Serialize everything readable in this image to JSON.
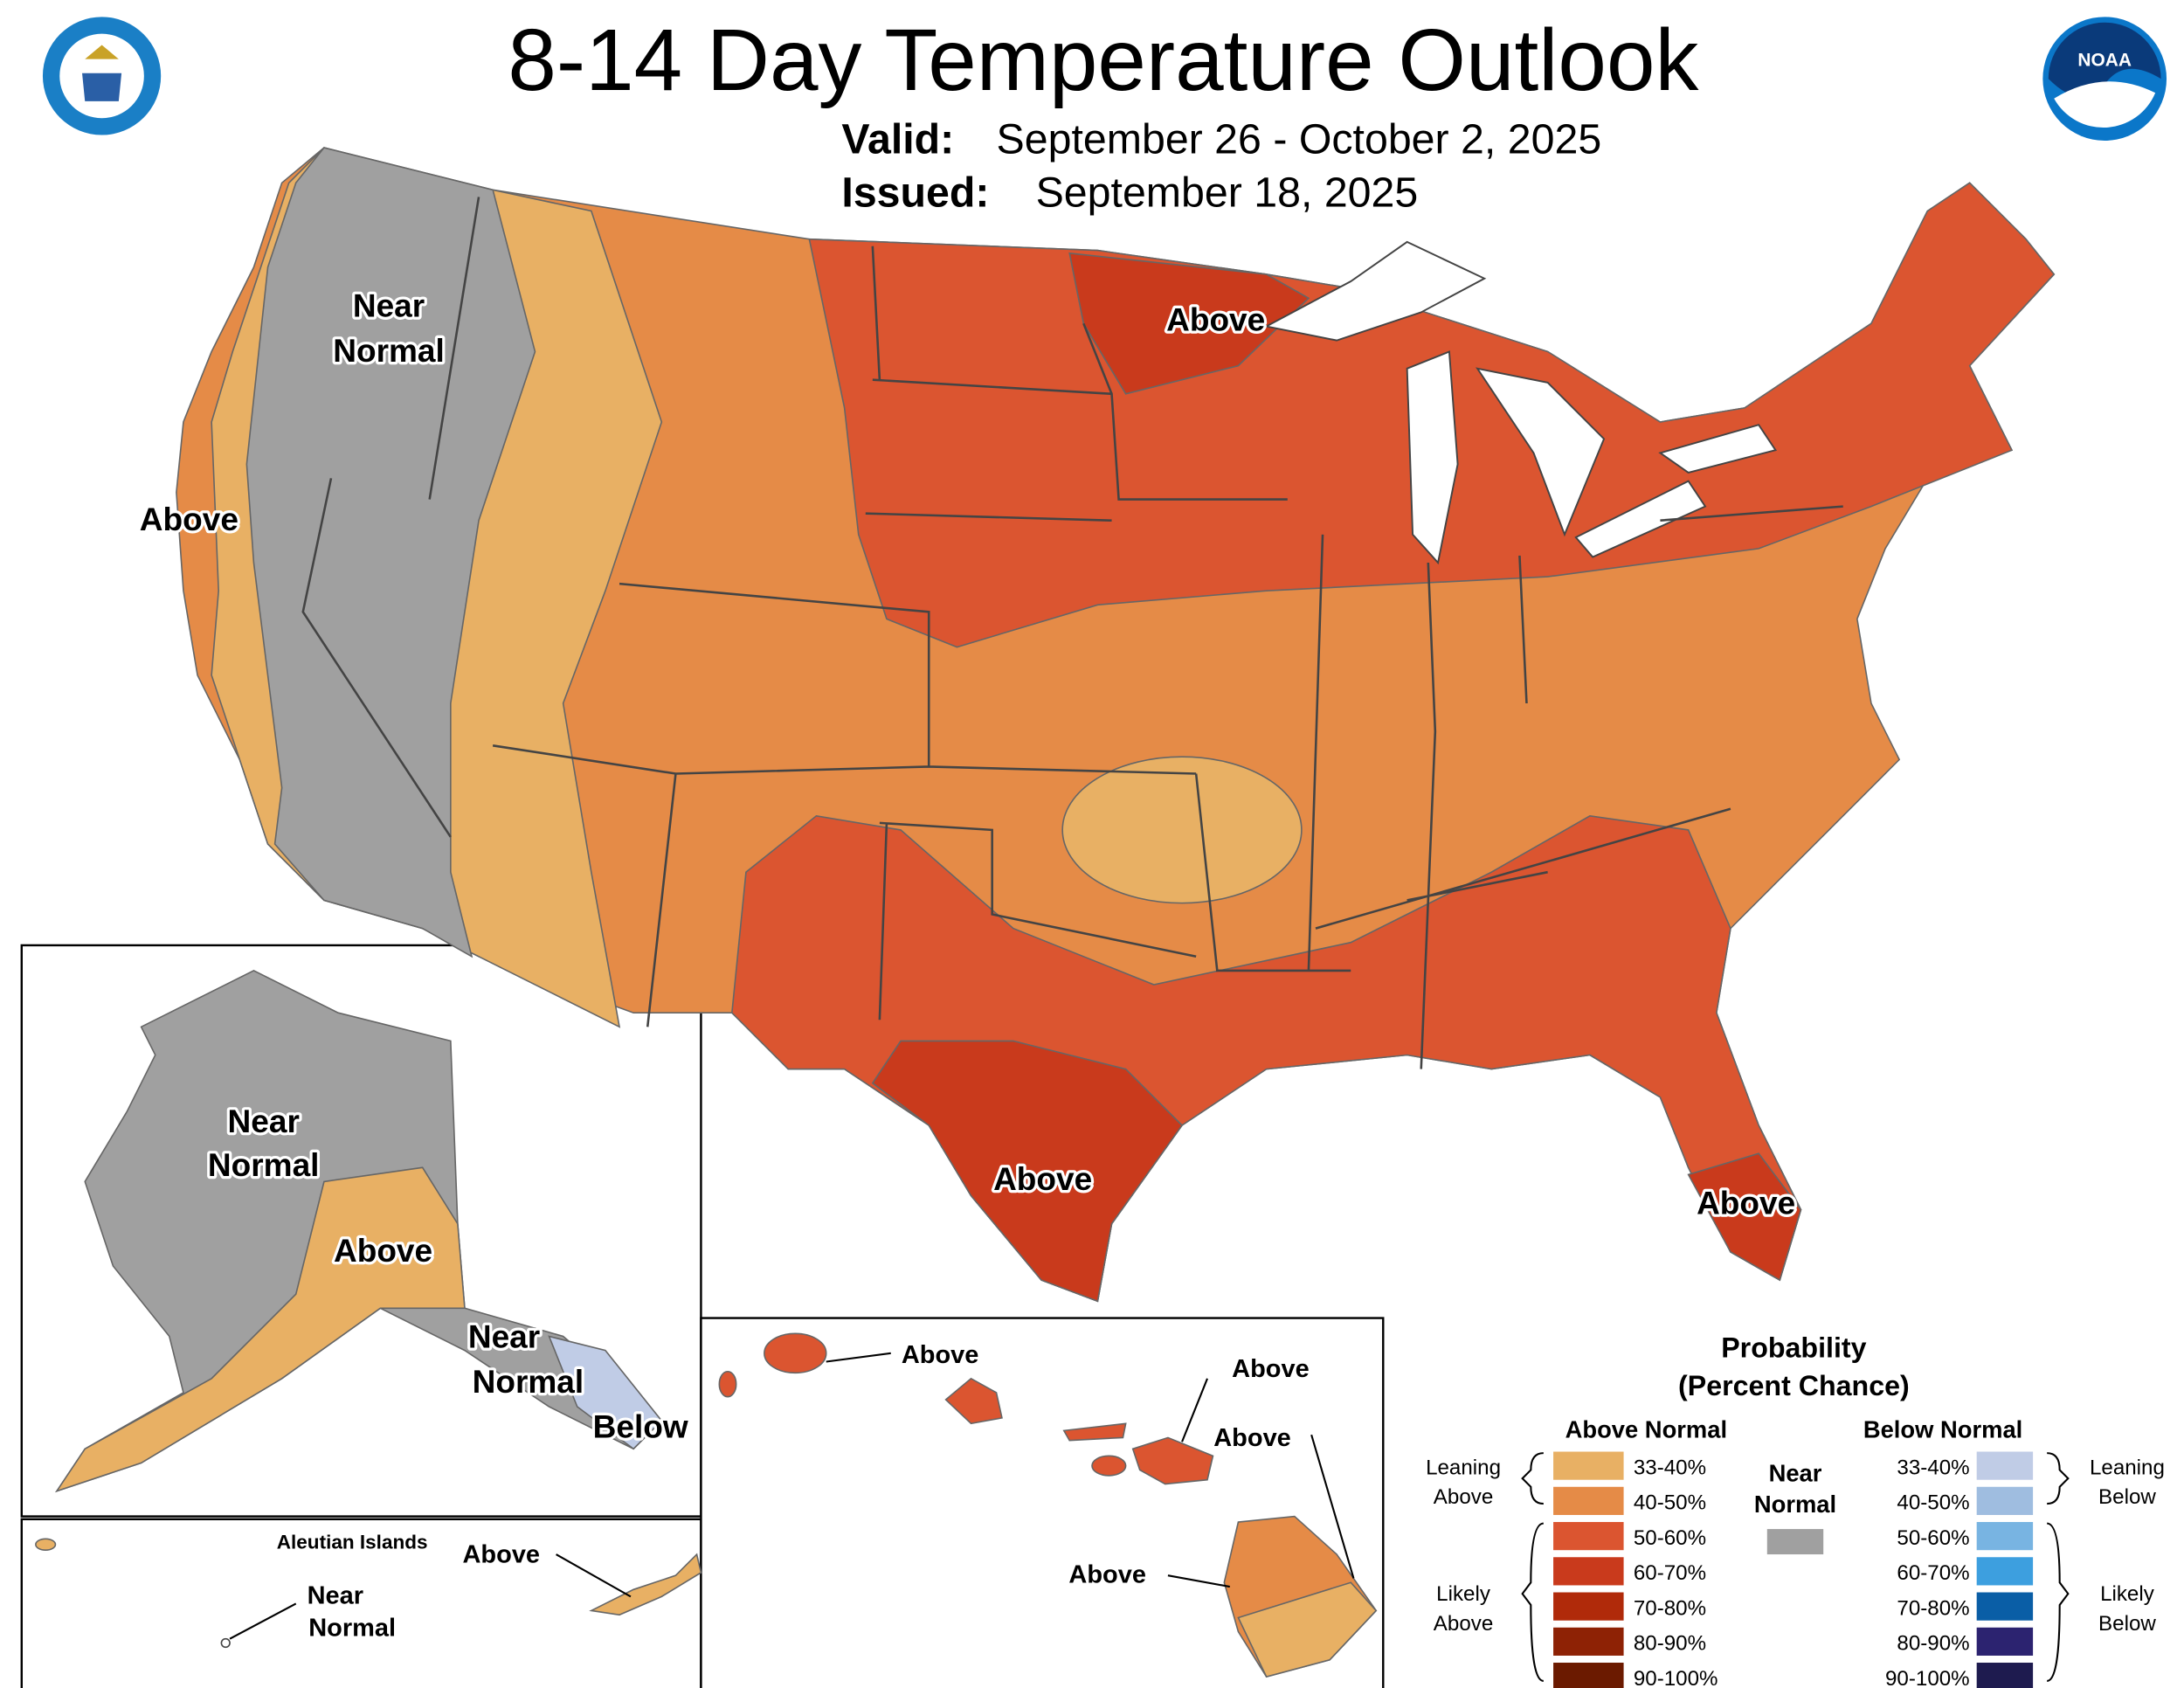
{
  "header": {
    "title": "8-14 Day Temperature Outlook",
    "valid_label": "Valid:",
    "valid": "September 26 - October 2, 2025",
    "issued_label": "Issued:",
    "issued": "September 18, 2025",
    "noaa_logo": "NOAA"
  },
  "conus": {
    "near_normal": [
      "Near",
      "Normal"
    ],
    "west_coast": "Above",
    "minnesota": "Above",
    "texas": "Above",
    "florida": "Above"
  },
  "alaska": {
    "near_normal_mainland": [
      "Near",
      "Normal"
    ],
    "above": "Above",
    "near_normal_southeast": [
      "Near",
      "Normal"
    ],
    "below": "Below"
  },
  "aleutians": {
    "title": "Aleutian Islands",
    "above": "Above",
    "near_normal": [
      "Near",
      "Normal"
    ]
  },
  "hawaii": {
    "kauai": "Above",
    "maui": "Above",
    "big_island_east": "Above",
    "big_island_west": "Above"
  },
  "legend": {
    "title": [
      "Probability",
      "(Percent Chance)"
    ],
    "above_heading": "Above Normal",
    "below_heading": "Below Normal",
    "near_normal": {
      "label": [
        "Near",
        "Normal"
      ],
      "color": "#a0a0a0"
    },
    "leaning_above": [
      "Leaning",
      "Above"
    ],
    "likely_above": [
      "Likely",
      "Above"
    ],
    "leaning_below": [
      "Leaning",
      "Below"
    ],
    "likely_below": [
      "Likely",
      "Below"
    ],
    "above": [
      {
        "label": "33-40%",
        "color": "#e8b064"
      },
      {
        "label": "40-50%",
        "color": "#e58b47"
      },
      {
        "label": "50-60%",
        "color": "#db5530"
      },
      {
        "label": "60-70%",
        "color": "#c93a1c"
      },
      {
        "label": "70-80%",
        "color": "#b02a0a"
      },
      {
        "label": "80-90%",
        "color": "#8e2205"
      },
      {
        "label": "90-100%",
        "color": "#6b1a00"
      }
    ],
    "below": [
      {
        "label": "33-40%",
        "color": "#c0cce6"
      },
      {
        "label": "40-50%",
        "color": "#9fbde0"
      },
      {
        "label": "50-60%",
        "color": "#78b4e2"
      },
      {
        "label": "60-70%",
        "color": "#3d9fdf"
      },
      {
        "label": "70-80%",
        "color": "#0a5ea6"
      },
      {
        "label": "80-90%",
        "color": "#2c2370"
      },
      {
        "label": "90-100%",
        "color": "#1e1b4f"
      }
    ]
  }
}
